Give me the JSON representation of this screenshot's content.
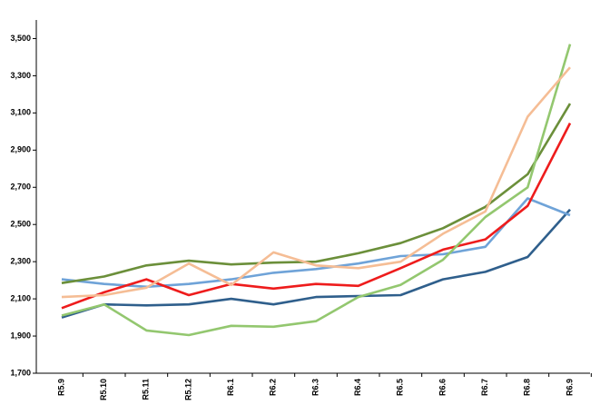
{
  "chart_data": {
    "type": "line",
    "categories": [
      "R5.9",
      "R5.10",
      "R5.11",
      "R5.12",
      "R6.1",
      "R6.2",
      "R6.3",
      "R6.4",
      "R6.5",
      "R6.6",
      "R6.7",
      "R6.8",
      "R6.9"
    ],
    "series": [
      {
        "color": "#2f5f8c",
        "values": [
          2000,
          2070,
          2065,
          2070,
          2100,
          2070,
          2110,
          2115,
          2120,
          2205,
          2245,
          2325,
          2580
        ]
      },
      {
        "color": "#6fa3d8",
        "values": [
          2205,
          2180,
          2165,
          2180,
          2205,
          2240,
          2260,
          2290,
          2330,
          2340,
          2380,
          2640,
          2550
        ]
      },
      {
        "color": "#ee1c1c",
        "values": [
          2050,
          2135,
          2205,
          2120,
          2180,
          2155,
          2180,
          2170,
          2265,
          2365,
          2420,
          2600,
          3045
        ]
      },
      {
        "color": "#6b8f3a",
        "values": [
          2185,
          2220,
          2280,
          2305,
          2285,
          2295,
          2300,
          2345,
          2400,
          2480,
          2595,
          2770,
          3150
        ]
      },
      {
        "color": "#93c76f",
        "values": [
          2010,
          2070,
          1930,
          1905,
          1955,
          1950,
          1980,
          2110,
          2175,
          2310,
          2540,
          2700,
          3470
        ]
      },
      {
        "color": "#f5bd95",
        "values": [
          2110,
          2120,
          2160,
          2290,
          2175,
          2350,
          2280,
          2265,
          2300,
          2450,
          2570,
          3080,
          3345
        ]
      }
    ],
    "ylim": [
      1700,
      3600
    ],
    "yticks": [
      {
        "value": 1700,
        "label": "1,700"
      },
      {
        "value": 1900,
        "label": "1,900"
      },
      {
        "value": 2100,
        "label": "2,100"
      },
      {
        "value": 2300,
        "label": "2,300"
      },
      {
        "value": 2500,
        "label": "2,500"
      },
      {
        "value": 2700,
        "label": "2,700"
      },
      {
        "value": 2900,
        "label": "2,900"
      },
      {
        "value": 3100,
        "label": "3,100"
      },
      {
        "value": 3300,
        "label": "3,300"
      },
      {
        "value": 3500,
        "label": "3,500"
      }
    ],
    "grid": false
  }
}
